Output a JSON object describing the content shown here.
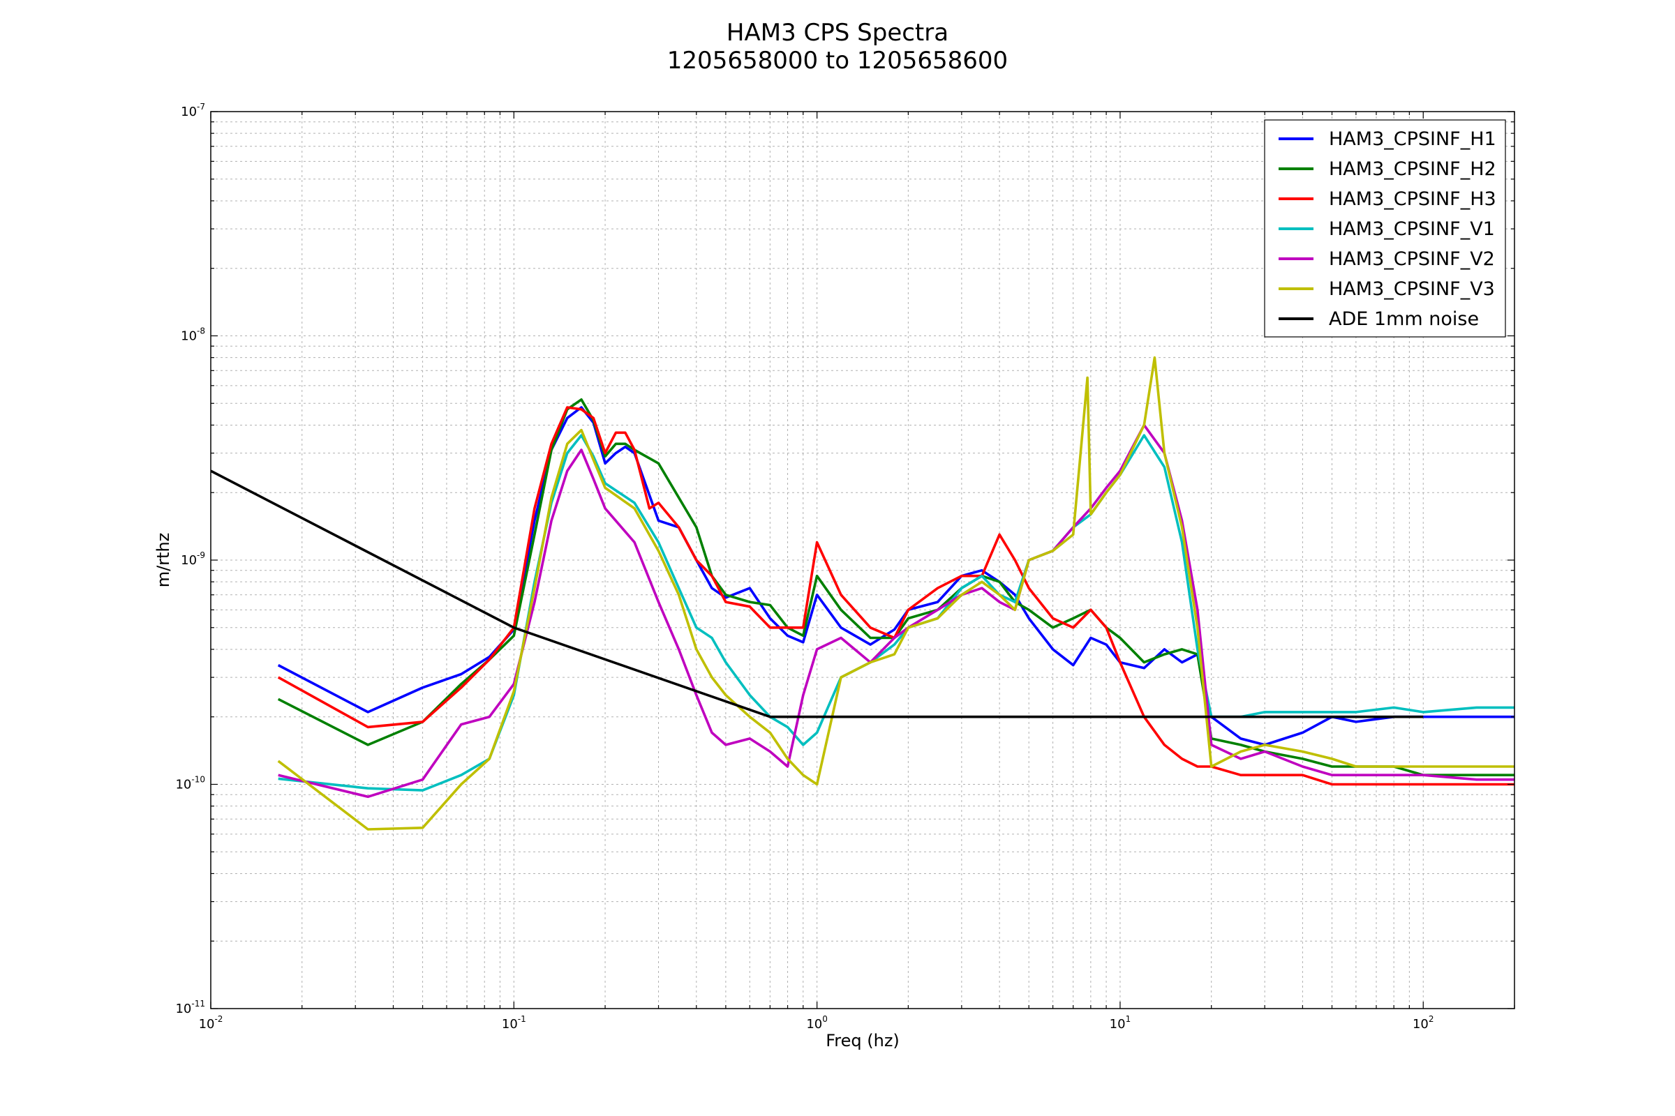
{
  "chart_data": {
    "type": "line",
    "title": "HAM3 CPS Spectra",
    "subtitle": "1205658000 to 1205658600",
    "xlabel": "Freq (hz)",
    "ylabel": "m/rthz",
    "xscale": "log",
    "yscale": "log",
    "xlim": [
      0.01,
      200
    ],
    "ylim": [
      1e-11,
      1e-07
    ],
    "grid": true,
    "legend_position": "top-right",
    "x_ticks": [
      {
        "base": "10",
        "exp": "-2",
        "value": 0.01
      },
      {
        "base": "10",
        "exp": "-1",
        "value": 0.1
      },
      {
        "base": "10",
        "exp": "0",
        "value": 1
      },
      {
        "base": "10",
        "exp": "1",
        "value": 10
      },
      {
        "base": "10",
        "exp": "2",
        "value": 100
      }
    ],
    "y_ticks": [
      {
        "base": "10",
        "exp": "-11",
        "value": 1e-11
      },
      {
        "base": "10",
        "exp": "-10",
        "value": 1e-10
      },
      {
        "base": "10",
        "exp": "-9",
        "value": 1e-09
      },
      {
        "base": "10",
        "exp": "-8",
        "value": 1e-08
      },
      {
        "base": "10",
        "exp": "-7",
        "value": 1e-07
      }
    ],
    "series": [
      {
        "name": "HAM3_CPSINF_H1",
        "color": "#0000ff",
        "x": [
          0.0167,
          0.033,
          0.05,
          0.067,
          0.083,
          0.1,
          0.117,
          0.133,
          0.15,
          0.167,
          0.183,
          0.2,
          0.217,
          0.233,
          0.25,
          0.3,
          0.35,
          0.4,
          0.45,
          0.5,
          0.6,
          0.7,
          0.8,
          0.9,
          1.0,
          1.2,
          1.5,
          1.8,
          2.0,
          2.5,
          3.0,
          3.5,
          4.0,
          4.5,
          5.0,
          6.0,
          7.0,
          8.0,
          9.0,
          10.0,
          12.0,
          14.0,
          16.0,
          18.0,
          20.0,
          25.0,
          30.0,
          40.0,
          50.0,
          60.0,
          80.0,
          100.0,
          150.0,
          200.0
        ],
        "y": [
          3.4e-10,
          2.1e-10,
          2.7e-10,
          3.1e-10,
          3.7e-10,
          4.9e-10,
          1.5e-09,
          3.1e-09,
          4.3e-09,
          4.8e-09,
          4.1e-09,
          2.7e-09,
          3e-09,
          3.2e-09,
          3e-09,
          1.5e-09,
          1.4e-09,
          1e-09,
          7.5e-10,
          6.8e-10,
          7.5e-10,
          5.5e-10,
          4.6e-10,
          4.3e-10,
          7e-10,
          5e-10,
          4.2e-10,
          4.9e-10,
          6e-10,
          6.5e-10,
          8.5e-10,
          9e-10,
          8e-10,
          7e-10,
          5.5e-10,
          4e-10,
          3.4e-10,
          4.5e-10,
          4.2e-10,
          3.5e-10,
          3.3e-10,
          4e-10,
          3.5e-10,
          3.8e-10,
          2e-10,
          1.6e-10,
          1.5e-10,
          1.7e-10,
          2e-10,
          1.9e-10,
          2e-10,
          2e-10,
          2e-10,
          2e-10
        ]
      },
      {
        "name": "HAM3_CPSINF_H2",
        "color": "#008000",
        "x": [
          0.0167,
          0.033,
          0.05,
          0.067,
          0.083,
          0.1,
          0.117,
          0.133,
          0.15,
          0.167,
          0.183,
          0.2,
          0.217,
          0.233,
          0.25,
          0.3,
          0.35,
          0.4,
          0.45,
          0.5,
          0.6,
          0.7,
          0.8,
          0.9,
          1.0,
          1.2,
          1.5,
          1.8,
          2.0,
          2.5,
          3.0,
          3.5,
          4.0,
          4.5,
          5.0,
          6.0,
          7.0,
          8.0,
          9.0,
          10.0,
          12.0,
          14.0,
          16.0,
          18.0,
          20.0,
          25.0,
          30.0,
          40.0,
          50.0,
          60.0,
          80.0,
          100.0,
          150.0,
          200.0
        ],
        "y": [
          2.4e-10,
          1.5e-10,
          1.9e-10,
          2.8e-10,
          3.6e-10,
          4.6e-10,
          1.3e-09,
          3.1e-09,
          4.7e-09,
          5.2e-09,
          4.2e-09,
          2.9e-09,
          3.3e-09,
          3.3e-09,
          3.1e-09,
          2.7e-09,
          1.9e-09,
          1.4e-09,
          8.5e-10,
          7e-10,
          6.5e-10,
          6.3e-10,
          5e-10,
          4.6e-10,
          8.5e-10,
          6e-10,
          4.5e-10,
          4.5e-10,
          5.5e-10,
          6e-10,
          7.5e-10,
          8.5e-10,
          8e-10,
          6.5e-10,
          6e-10,
          5e-10,
          5.5e-10,
          6e-10,
          5e-10,
          4.5e-10,
          3.5e-10,
          3.8e-10,
          4e-10,
          3.8e-10,
          1.6e-10,
          1.5e-10,
          1.4e-10,
          1.3e-10,
          1.2e-10,
          1.2e-10,
          1.2e-10,
          1.1e-10,
          1.1e-10,
          1.1e-10
        ]
      },
      {
        "name": "HAM3_CPSINF_H3",
        "color": "#ff0000",
        "x": [
          0.0167,
          0.033,
          0.05,
          0.067,
          0.083,
          0.1,
          0.117,
          0.133,
          0.15,
          0.167,
          0.183,
          0.2,
          0.217,
          0.233,
          0.25,
          0.28,
          0.3,
          0.35,
          0.4,
          0.45,
          0.5,
          0.6,
          0.7,
          0.8,
          0.9,
          1.0,
          1.2,
          1.5,
          1.8,
          2.0,
          2.5,
          3.0,
          3.5,
          4.0,
          4.5,
          5.0,
          6.0,
          7.0,
          8.0,
          9.0,
          10.0,
          12.0,
          14.0,
          16.0,
          18.0,
          20.0,
          25.0,
          30.0,
          40.0,
          50.0,
          60.0,
          80.0,
          100.0,
          150.0,
          200.0
        ],
        "y": [
          3e-10,
          1.8e-10,
          1.9e-10,
          2.7e-10,
          3.6e-10,
          5e-10,
          1.7e-09,
          3.3e-09,
          4.8e-09,
          4.7e-09,
          4.3e-09,
          3e-09,
          3.7e-09,
          3.7e-09,
          3.1e-09,
          1.7e-09,
          1.8e-09,
          1.4e-09,
          1e-09,
          8.5e-10,
          6.5e-10,
          6.2e-10,
          5e-10,
          5e-10,
          5e-10,
          1.2e-09,
          7e-10,
          5e-10,
          4.5e-10,
          6e-10,
          7.5e-10,
          8.5e-10,
          8.5e-10,
          1.3e-09,
          1e-09,
          7.5e-10,
          5.5e-10,
          5e-10,
          6e-10,
          5e-10,
          3.5e-10,
          2e-10,
          1.5e-10,
          1.3e-10,
          1.2e-10,
          1.2e-10,
          1.1e-10,
          1.1e-10,
          1.1e-10,
          1e-10,
          1e-10,
          1e-10,
          1e-10,
          1e-10,
          1e-10
        ]
      },
      {
        "name": "HAM3_CPSINF_V1",
        "color": "#00bfbf",
        "x": [
          0.0167,
          0.033,
          0.05,
          0.067,
          0.083,
          0.1,
          0.117,
          0.133,
          0.15,
          0.167,
          0.183,
          0.2,
          0.25,
          0.3,
          0.35,
          0.4,
          0.45,
          0.5,
          0.6,
          0.7,
          0.8,
          0.9,
          1.0,
          1.2,
          1.5,
          1.8,
          2.0,
          2.5,
          3.0,
          3.5,
          4.0,
          4.5,
          5.0,
          6.0,
          7.0,
          8.0,
          9.0,
          10.0,
          12.0,
          14.0,
          16.0,
          18.0,
          20.0,
          25.0,
          30.0,
          40.0,
          50.0,
          60.0,
          80.0,
          100.0,
          150.0,
          200.0
        ],
        "y": [
          1.06e-10,
          9.6e-11,
          9.4e-11,
          1.1e-10,
          1.3e-10,
          2.5e-10,
          8e-10,
          1.8e-09,
          3e-09,
          3.6e-09,
          2.9e-09,
          2.2e-09,
          1.8e-09,
          1.2e-09,
          7.5e-10,
          5e-10,
          4.5e-10,
          3.5e-10,
          2.5e-10,
          2e-10,
          1.8e-10,
          1.5e-10,
          1.7e-10,
          3e-10,
          3.5e-10,
          4.2e-10,
          5e-10,
          5.5e-10,
          7.5e-10,
          8.5e-10,
          7e-10,
          6.5e-10,
          1e-09,
          1.1e-09,
          1.4e-09,
          1.6e-09,
          2e-09,
          2.4e-09,
          3.6e-09,
          2.6e-09,
          1.2e-09,
          4e-10,
          2e-10,
          2e-10,
          2.1e-10,
          2.1e-10,
          2.1e-10,
          2.1e-10,
          2.2e-10,
          2.1e-10,
          2.2e-10,
          2.2e-10
        ]
      },
      {
        "name": "HAM3_CPSINF_V2",
        "color": "#bf00bf",
        "x": [
          0.0167,
          0.033,
          0.05,
          0.067,
          0.083,
          0.1,
          0.117,
          0.133,
          0.15,
          0.167,
          0.183,
          0.2,
          0.25,
          0.3,
          0.35,
          0.4,
          0.45,
          0.5,
          0.6,
          0.7,
          0.8,
          0.9,
          1.0,
          1.2,
          1.5,
          1.8,
          2.0,
          2.5,
          3.0,
          3.5,
          4.0,
          4.5,
          5.0,
          6.0,
          7.0,
          8.0,
          9.0,
          10.0,
          12.0,
          14.0,
          16.0,
          18.0,
          20.0,
          25.0,
          30.0,
          40.0,
          50.0,
          60.0,
          80.0,
          100.0,
          150.0,
          200.0
        ],
        "y": [
          1.1e-10,
          8.8e-11,
          1.05e-10,
          1.85e-10,
          2e-10,
          2.8e-10,
          6.5e-10,
          1.5e-09,
          2.5e-09,
          3.1e-09,
          2.3e-09,
          1.7e-09,
          1.2e-09,
          6.5e-10,
          4e-10,
          2.5e-10,
          1.7e-10,
          1.5e-10,
          1.6e-10,
          1.4e-10,
          1.2e-10,
          2.5e-10,
          4e-10,
          4.5e-10,
          3.5e-10,
          4.5e-10,
          5e-10,
          6e-10,
          7e-10,
          7.5e-10,
          6.5e-10,
          6e-10,
          1e-09,
          1.1e-09,
          1.4e-09,
          1.7e-09,
          2.1e-09,
          2.5e-09,
          4e-09,
          3e-09,
          1.5e-09,
          6e-10,
          1.5e-10,
          1.3e-10,
          1.4e-10,
          1.2e-10,
          1.1e-10,
          1.1e-10,
          1.1e-10,
          1.1e-10,
          1.05e-10,
          1.05e-10
        ]
      },
      {
        "name": "HAM3_CPSINF_V3",
        "color": "#bfbf00",
        "x": [
          0.0167,
          0.033,
          0.05,
          0.067,
          0.083,
          0.1,
          0.117,
          0.133,
          0.15,
          0.167,
          0.183,
          0.2,
          0.25,
          0.3,
          0.35,
          0.4,
          0.45,
          0.5,
          0.6,
          0.7,
          0.8,
          0.9,
          1.0,
          1.2,
          1.5,
          1.8,
          2.0,
          2.5,
          3.0,
          3.5,
          4.0,
          4.5,
          5.0,
          6.0,
          7.0,
          7.8,
          8.0,
          9.0,
          10.0,
          12.0,
          13.0,
          14.0,
          16.0,
          18.0,
          20.0,
          25.0,
          30.0,
          40.0,
          50.0,
          60.0,
          80.0,
          100.0,
          150.0,
          200.0
        ],
        "y": [
          1.27e-10,
          6.3e-11,
          6.4e-11,
          1e-10,
          1.3e-10,
          2.6e-10,
          7.5e-10,
          1.9e-09,
          3.3e-09,
          3.8e-09,
          2.8e-09,
          2.1e-09,
          1.7e-09,
          1.1e-09,
          7e-10,
          4e-10,
          3e-10,
          2.5e-10,
          2e-10,
          1.7e-10,
          1.3e-10,
          1.1e-10,
          1e-10,
          3e-10,
          3.5e-10,
          3.8e-10,
          5e-10,
          5.5e-10,
          7e-10,
          8e-10,
          7e-10,
          6e-10,
          1e-09,
          1.1e-09,
          1.3e-09,
          6.5e-09,
          1.6e-09,
          2e-09,
          2.4e-09,
          4e-09,
          8e-09,
          3e-09,
          1.4e-09,
          5e-10,
          1.2e-10,
          1.4e-10,
          1.5e-10,
          1.4e-10,
          1.3e-10,
          1.2e-10,
          1.2e-10,
          1.2e-10,
          1.2e-10,
          1.2e-10
        ]
      },
      {
        "name": "ADE 1mm noise",
        "color": "#000000",
        "x": [
          0.01,
          0.1,
          0.7,
          100.0
        ],
        "y": [
          2.5e-09,
          5e-10,
          2e-10,
          2e-10
        ]
      }
    ]
  }
}
